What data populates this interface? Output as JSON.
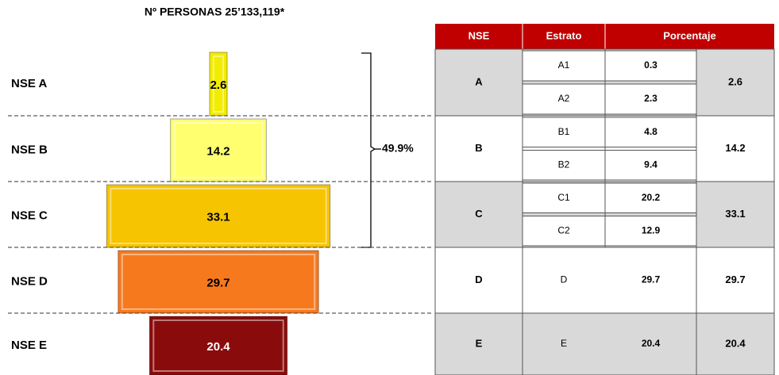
{
  "chart_data": {
    "type": "pyramid",
    "title": "Nº PERSONAS 25’133,119*",
    "categories": [
      "NSE A",
      "NSE B",
      "NSE C",
      "NSE D",
      "NSE E"
    ],
    "values": [
      2.6,
      14.2,
      33.1,
      29.7,
      20.4
    ],
    "colors": [
      "#f2ec00",
      "#ffff70",
      "#f6c400",
      "#f7791e",
      "#8a0b0b"
    ],
    "label_colors": [
      "#000000",
      "#000000",
      "#000000",
      "#000000",
      "#ffffff"
    ],
    "annotation": "49.9%"
  },
  "table": {
    "header": [
      "NSE",
      "Estrato",
      "Porcentaje"
    ],
    "rows": [
      {
        "nse": "A",
        "strata": [
          {
            "name": "A1",
            "value": 0.3
          },
          {
            "name": "A2",
            "value": 2.3
          }
        ],
        "total": 2.6
      },
      {
        "nse": "B",
        "strata": [
          {
            "name": "B1",
            "value": 4.8
          },
          {
            "name": "B2",
            "value": 9.4
          }
        ],
        "total": 14.2
      },
      {
        "nse": "C",
        "strata": [
          {
            "name": "C1",
            "value": 20.2
          },
          {
            "name": "C2",
            "value": 12.9
          }
        ],
        "total": 33.1
      },
      {
        "nse": "D",
        "strata": [
          {
            "name": "D",
            "value": 29.7
          }
        ],
        "total": 29.7
      },
      {
        "nse": "E",
        "strata": [
          {
            "name": "E",
            "value": 20.4
          }
        ],
        "total": 20.4
      }
    ]
  }
}
